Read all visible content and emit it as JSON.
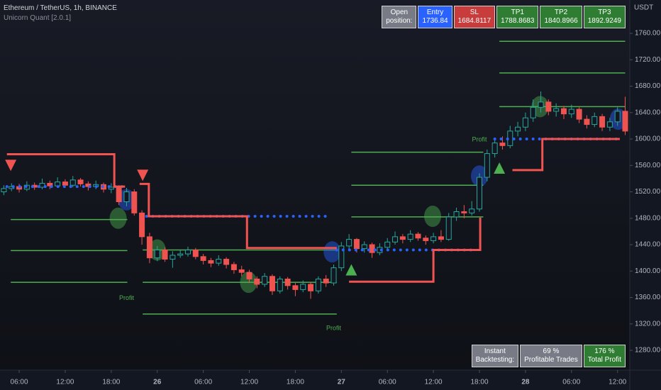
{
  "header": {
    "symbol": "Ethereum / TetherUS, 1h, BINANCE",
    "indicator": "Unicorn Quant [2.0.1]"
  },
  "position_table": [
    {
      "lines": [
        "Open",
        "position:"
      ],
      "color": "#787b86"
    },
    {
      "lines": [
        "Entry",
        "1736.84"
      ],
      "color": "#2962ff"
    },
    {
      "lines": [
        "SL",
        "1684.8117"
      ],
      "color": "#c83c3c"
    },
    {
      "lines": [
        "TP1",
        "1788.8683"
      ],
      "color": "#2e7d32"
    },
    {
      "lines": [
        "TP2",
        "1840.8966"
      ],
      "color": "#2e7d32"
    },
    {
      "lines": [
        "TP3",
        "1892.9249"
      ],
      "color": "#2e7d32"
    }
  ],
  "backtest_table": [
    {
      "lines": [
        "Instant",
        "Backtesting:"
      ],
      "color": "#787b86"
    },
    {
      "lines": [
        "69 %",
        "Profitable Trades"
      ],
      "color": "#787b86"
    },
    {
      "lines": [
        "176 %",
        "Total Profit"
      ],
      "color": "#2e7d32"
    }
  ],
  "chart_data": {
    "type": "candlestick",
    "y_unit": "USDT",
    "up_color": "#26a69a",
    "down_color": "#ef5350",
    "xlim": [
      3.5,
      85.6
    ],
    "ylim": [
      1250,
      1810.5
    ],
    "xticks": [
      {
        "value": 6,
        "label": "06:00"
      },
      {
        "value": 12,
        "label": "12:00"
      },
      {
        "value": 18,
        "label": "18:00"
      },
      {
        "value": 24,
        "label": "26"
      },
      {
        "value": 30,
        "label": "06:00"
      },
      {
        "value": 36,
        "label": "12:00"
      },
      {
        "value": 42,
        "label": "18:00"
      },
      {
        "value": 48,
        "label": "27"
      },
      {
        "value": 54,
        "label": "06:00"
      },
      {
        "value": 60,
        "label": "12:00"
      },
      {
        "value": 66,
        "label": "18:00"
      },
      {
        "value": 72,
        "label": "28"
      },
      {
        "value": 78,
        "label": "06:00"
      },
      {
        "value": 84,
        "label": "12:00"
      }
    ],
    "yticks": [
      {
        "value": 1280,
        "label": "1280.00"
      },
      {
        "value": 1320,
        "label": "1320.00"
      },
      {
        "value": 1360,
        "label": "1360.00"
      },
      {
        "value": 1400,
        "label": "1400.00"
      },
      {
        "value": 1440,
        "label": "1440.00"
      },
      {
        "value": 1480,
        "label": "1480.00"
      },
      {
        "value": 1520,
        "label": "1520.00"
      },
      {
        "value": 1560,
        "label": "1560.00"
      },
      {
        "value": 1600,
        "label": "1600.00"
      },
      {
        "value": 1640,
        "label": "1640.00"
      },
      {
        "value": 1680,
        "label": "1680.00"
      },
      {
        "value": 1720,
        "label": "1720.00"
      },
      {
        "value": 1760,
        "label": "1760.00"
      }
    ],
    "x": [
      4,
      5,
      6,
      7,
      8,
      9,
      10,
      11,
      12,
      13,
      14,
      15,
      16,
      17,
      18,
      19,
      20,
      21,
      22,
      23,
      24,
      25,
      26,
      27,
      28,
      29,
      30,
      31,
      32,
      33,
      34,
      35,
      36,
      37,
      38,
      39,
      40,
      41,
      42,
      43,
      44,
      45,
      46,
      47,
      48,
      49,
      50,
      51,
      52,
      53,
      54,
      55,
      56,
      57,
      58,
      59,
      60,
      61,
      62,
      63,
      64,
      65,
      66,
      67,
      68,
      69,
      70,
      71,
      72,
      73,
      74,
      75,
      76,
      77,
      78,
      79,
      80,
      81,
      82,
      83,
      84,
      85
    ],
    "open": [
      1520,
      1525,
      1528,
      1524,
      1530,
      1527,
      1533,
      1529,
      1535,
      1530,
      1538,
      1532,
      1528,
      1531,
      1524,
      1527,
      1505,
      1520,
      1488,
      1452,
      1420,
      1432,
      1418,
      1424,
      1426,
      1432,
      1422,
      1416,
      1412,
      1418,
      1410,
      1402,
      1398,
      1388,
      1380,
      1392,
      1370,
      1388,
      1378,
      1372,
      1380,
      1370,
      1388,
      1382,
      1405,
      1438,
      1448,
      1434,
      1440,
      1428,
      1436,
      1444,
      1452,
      1448,
      1456,
      1450,
      1446,
      1452,
      1448,
      1482,
      1490,
      1488,
      1494,
      1542,
      1578,
      1594,
      1590,
      1612,
      1618,
      1632,
      1648,
      1656,
      1642,
      1646,
      1638,
      1645,
      1630,
      1622,
      1634,
      1618,
      1626,
      1642
    ],
    "high": [
      1530,
      1533,
      1532,
      1536,
      1534,
      1540,
      1537,
      1542,
      1539,
      1544,
      1541,
      1536,
      1537,
      1534,
      1533,
      1530,
      1526,
      1524,
      1492,
      1458,
      1438,
      1436,
      1430,
      1432,
      1437,
      1435,
      1426,
      1420,
      1424,
      1421,
      1414,
      1408,
      1402,
      1392,
      1397,
      1395,
      1392,
      1391,
      1382,
      1386,
      1383,
      1392,
      1394,
      1410,
      1444,
      1456,
      1450,
      1445,
      1443,
      1442,
      1450,
      1460,
      1456,
      1462,
      1459,
      1454,
      1458,
      1462,
      1488,
      1496,
      1500,
      1506,
      1548,
      1584,
      1600,
      1604,
      1620,
      1626,
      1640,
      1660,
      1672,
      1660,
      1654,
      1650,
      1652,
      1648,
      1636,
      1640,
      1638,
      1632,
      1648,
      1664
    ],
    "low": [
      1515,
      1521,
      1519,
      1521,
      1523,
      1524,
      1524,
      1526,
      1526,
      1527,
      1528,
      1522,
      1524,
      1519,
      1518,
      1500,
      1498,
      1484,
      1440,
      1412,
      1415,
      1414,
      1405,
      1420,
      1422,
      1418,
      1410,
      1406,
      1408,
      1404,
      1396,
      1392,
      1382,
      1374,
      1376,
      1364,
      1366,
      1372,
      1362,
      1368,
      1358,
      1366,
      1376,
      1378,
      1400,
      1432,
      1428,
      1428,
      1420,
      1424,
      1432,
      1440,
      1442,
      1444,
      1446,
      1440,
      1442,
      1444,
      1446,
      1476,
      1480,
      1484,
      1490,
      1536,
      1572,
      1584,
      1586,
      1604,
      1612,
      1626,
      1640,
      1636,
      1634,
      1630,
      1632,
      1624,
      1616,
      1618,
      1612,
      1612,
      1620,
      1606
    ],
    "close": [
      1525,
      1528,
      1524,
      1530,
      1527,
      1533,
      1529,
      1535,
      1530,
      1538,
      1532,
      1528,
      1531,
      1524,
      1527,
      1505,
      1520,
      1488,
      1452,
      1420,
      1432,
      1418,
      1424,
      1426,
      1432,
      1422,
      1416,
      1412,
      1418,
      1410,
      1402,
      1398,
      1388,
      1380,
      1392,
      1370,
      1388,
      1378,
      1372,
      1380,
      1370,
      1388,
      1382,
      1405,
      1438,
      1448,
      1434,
      1440,
      1428,
      1436,
      1444,
      1452,
      1448,
      1456,
      1450,
      1446,
      1452,
      1448,
      1482,
      1490,
      1488,
      1494,
      1542,
      1578,
      1594,
      1590,
      1612,
      1618,
      1632,
      1648,
      1656,
      1642,
      1646,
      1638,
      1645,
      1630,
      1622,
      1634,
      1618,
      1626,
      1642,
      1612
    ],
    "overlays": {
      "stop_lines": {
        "color": "#f05350",
        "lines": [
          {
            "x": [
              4.4,
              18.4,
              18.4,
              19.8
            ],
            "values": [
              1577,
              1577,
              1528,
              1528
            ]
          },
          {
            "x": [
              21.7,
              22.9,
              22.9,
              35.7,
              35.7,
              47.4
            ],
            "values": [
              1532,
              1532,
              1483,
              1483,
              1435,
              1435
            ]
          },
          {
            "x": [
              49,
              60,
              60,
              66.1,
              66.1
            ],
            "values": [
              1384,
              1384,
              1432,
              1432,
              1481
            ]
          },
          {
            "x": [
              70.3,
              74.2,
              74.2,
              84.3
            ],
            "values": [
              1553,
              1553,
              1600,
              1600
            ]
          }
        ]
      },
      "entry_lines": {
        "color": "#2962ff",
        "lines": [
          {
            "x": [
              4.4,
              19.8
            ],
            "values": [
              1528,
              1528
            ]
          },
          {
            "x": [
              22.6,
              46.4
            ],
            "values": [
              1483,
              1483
            ]
          },
          {
            "x": [
              47.4,
              65.6
            ],
            "values": [
              1432,
              1432
            ]
          },
          {
            "x": [
              68,
              84.3
            ],
            "values": [
              1600,
              1600
            ]
          }
        ]
      },
      "target_lines": {
        "color": "#4caf50",
        "lines": [
          {
            "x": [
              4.9,
              20.1
            ],
            "values": [
              1478,
              1478
            ]
          },
          {
            "x": [
              4.9,
              20.1
            ],
            "values": [
              1431,
              1431
            ]
          },
          {
            "x": [
              4.9,
              20.1
            ],
            "values": [
              1383,
              1383
            ]
          },
          {
            "x": [
              22.1,
              47.4
            ],
            "values": [
              1432,
              1432
            ]
          },
          {
            "x": [
              22.1,
              47.4
            ],
            "values": [
              1383,
              1383
            ]
          },
          {
            "x": [
              22.1,
              47.4
            ],
            "values": [
              1335,
              1335
            ]
          },
          {
            "x": [
              49.3,
              66.5
            ],
            "values": [
              1580,
              1580
            ]
          },
          {
            "x": [
              49.3,
              66.5
            ],
            "values": [
              1530,
              1530
            ]
          },
          {
            "x": [
              49.3,
              66.5
            ],
            "values": [
              1482,
              1482
            ]
          },
          {
            "x": [
              68.6,
              85
            ],
            "values": [
              1748,
              1748
            ]
          },
          {
            "x": [
              68.6,
              85
            ],
            "values": [
              1700,
              1700
            ]
          },
          {
            "x": [
              68.6,
              85
            ],
            "values": [
              1649,
              1649
            ]
          }
        ]
      },
      "signals": [
        {
          "shape": "down",
          "color": "#f05350",
          "x": 4.9,
          "value": 1560
        },
        {
          "shape": "down",
          "color": "#f05350",
          "x": 22.1,
          "value": 1545
        },
        {
          "shape": "up",
          "color": "#4caf50",
          "x": 49.3,
          "value": 1402
        },
        {
          "shape": "up",
          "color": "#4caf50",
          "x": 68.6,
          "value": 1556
        }
      ],
      "circles": [
        {
          "color": "#2962ff",
          "x": 20.0,
          "value": 1508
        },
        {
          "color": "#2962ff",
          "x": 46.8,
          "value": 1429
        },
        {
          "color": "#2962ff",
          "x": 66.0,
          "value": 1544
        },
        {
          "color": "#2962ff",
          "x": 84.1,
          "value": 1630
        },
        {
          "color": "#4caf50",
          "x": 18.9,
          "value": 1480
        },
        {
          "color": "#4caf50",
          "x": 24.0,
          "value": 1432
        },
        {
          "color": "#4caf50",
          "x": 35.9,
          "value": 1383
        },
        {
          "color": "#4caf50",
          "x": 59.9,
          "value": 1483
        },
        {
          "color": "#4caf50",
          "x": 73.9,
          "value": 1649
        }
      ],
      "profit_labels": [
        {
          "label": "Profit",
          "x": 20,
          "value": 1359
        },
        {
          "label": "Profit",
          "x": 47,
          "value": 1313
        },
        {
          "label": "Profit",
          "x": 66,
          "value": 1599
        }
      ]
    }
  }
}
